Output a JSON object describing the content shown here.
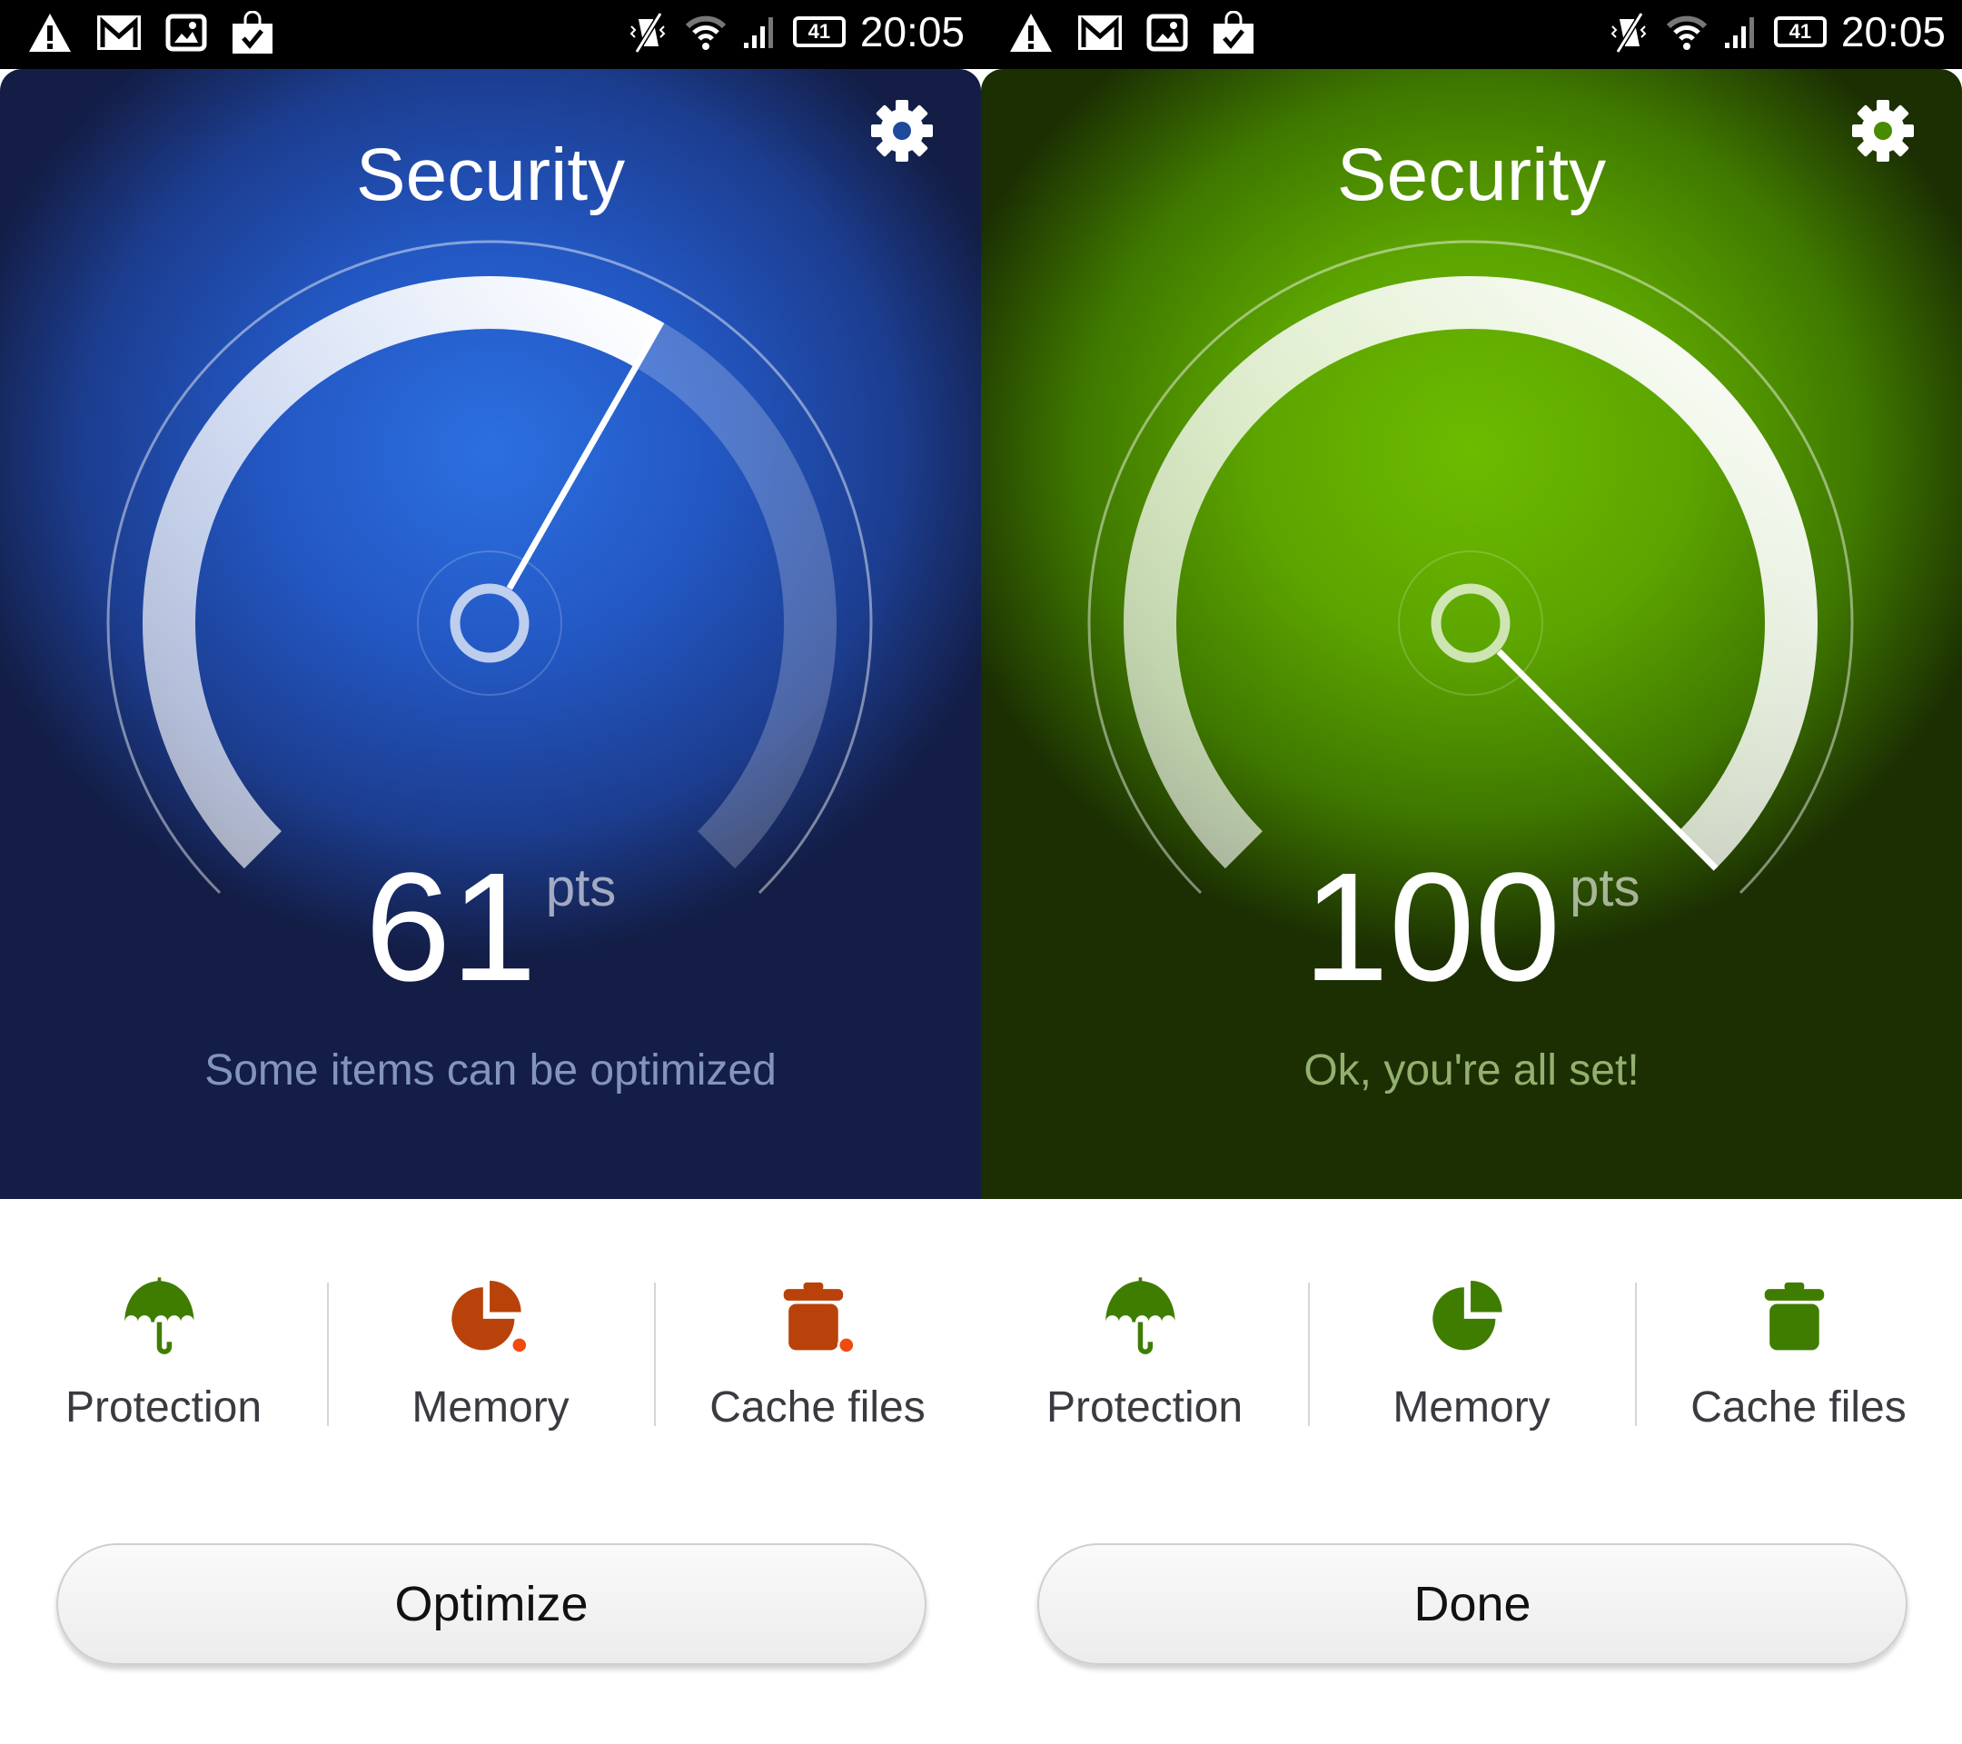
{
  "status_bar": {
    "time": "20:05",
    "battery": "41",
    "left_icons": [
      "warning-icon",
      "gmail-icon",
      "gallery-icon",
      "shopping-bag-check-icon"
    ],
    "right_icons": [
      "vibrate-off-icon",
      "wifi-icon",
      "signal-icon",
      "battery-icon"
    ]
  },
  "panels": [
    {
      "title": "Security",
      "score": "61",
      "score_value": 61,
      "unit": "pts",
      "message": "Some items can be optimized",
      "theme": "blue",
      "items": [
        {
          "label": "Protection",
          "icon": "umbrella-icon",
          "color": "#3f7d00",
          "alert": false
        },
        {
          "label": "Memory",
          "icon": "pie-chart-icon",
          "color": "#b8420a",
          "alert": true
        },
        {
          "label": "Cache files",
          "icon": "trash-icon",
          "color": "#b8420a",
          "alert": true
        }
      ],
      "button": "Optimize"
    },
    {
      "title": "Security",
      "score": "100",
      "score_value": 100,
      "unit": "pts",
      "message": "Ok, you're all set!",
      "theme": "green",
      "items": [
        {
          "label": "Protection",
          "icon": "umbrella-icon",
          "color": "#3f7d00",
          "alert": false
        },
        {
          "label": "Memory",
          "icon": "pie-chart-icon",
          "color": "#3f7d00",
          "alert": false
        },
        {
          "label": "Cache files",
          "icon": "trash-icon",
          "color": "#3f7d00",
          "alert": false
        }
      ],
      "button": "Done"
    }
  ],
  "colors": {
    "alert_dot": "#f04a10",
    "blue_theme": "#2358c4",
    "green_theme": "#5ca400"
  }
}
